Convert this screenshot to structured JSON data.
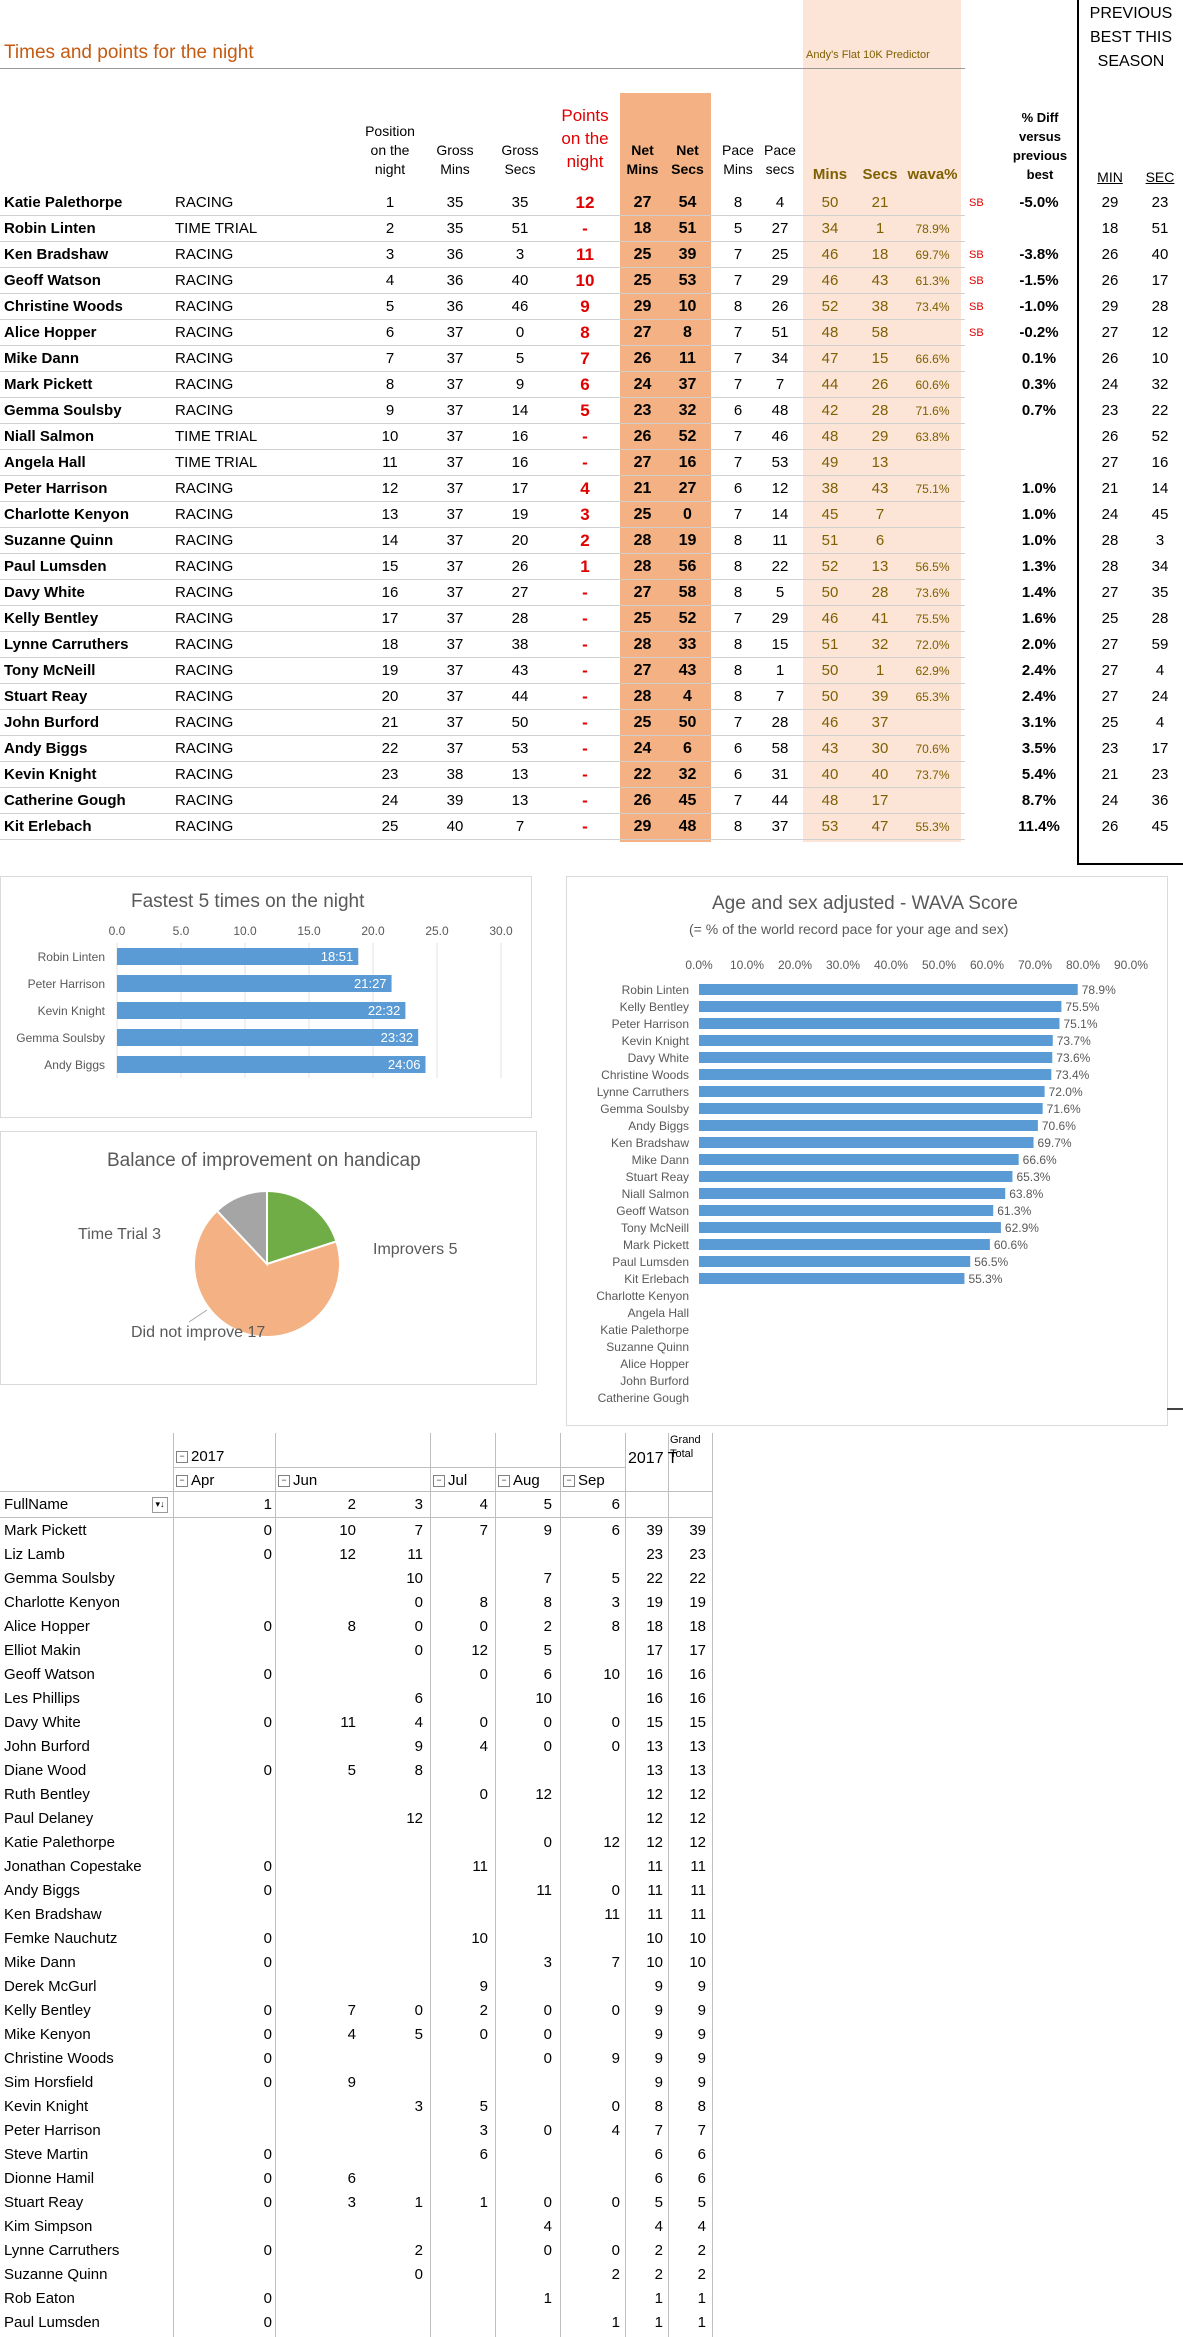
{
  "header": {
    "title": "Times and points for the night",
    "predictor": "Andy's Flat 10K Predictor",
    "prev_best": [
      "PREVIOUS",
      "BEST THIS",
      "SEASON"
    ]
  },
  "columns": {
    "position": [
      "Position",
      "on the",
      "night"
    ],
    "gross_mins": [
      "Gross",
      "Mins"
    ],
    "gross_secs": [
      "Gross",
      "Secs"
    ],
    "points": [
      "Points",
      "on the",
      "night"
    ],
    "net_mins": [
      "Net",
      "Mins"
    ],
    "net_secs": [
      "Net",
      "Secs"
    ],
    "pace_mins": [
      "Pace",
      "Mins"
    ],
    "pace_secs": [
      "Pace",
      "secs"
    ],
    "pred_mins": "Mins",
    "pred_secs": "Secs",
    "wava": "wava%",
    "diff": [
      "% Diff",
      "versus",
      "previous",
      "best"
    ],
    "prev_min": "MIN",
    "prev_sec": "SEC"
  },
  "results": [
    [
      "Katie Palethorpe",
      "RACING",
      "1",
      "35",
      "35",
      "12",
      "27",
      "54",
      "8",
      "4",
      "50",
      "21",
      "",
      "SB",
      "-5.0%",
      "29",
      "23"
    ],
    [
      "Robin Linten",
      "TIME TRIAL",
      "2",
      "35",
      "51",
      "-",
      "18",
      "51",
      "5",
      "27",
      "34",
      "1",
      "78.9%",
      "",
      "",
      "18",
      "51"
    ],
    [
      "Ken Bradshaw",
      "RACING",
      "3",
      "36",
      "3",
      "11",
      "25",
      "39",
      "7",
      "25",
      "46",
      "18",
      "69.7%",
      "SB",
      "-3.8%",
      "26",
      "40"
    ],
    [
      "Geoff Watson",
      "RACING",
      "4",
      "36",
      "40",
      "10",
      "25",
      "53",
      "7",
      "29",
      "46",
      "43",
      "61.3%",
      "SB",
      "-1.5%",
      "26",
      "17"
    ],
    [
      "Christine Woods",
      "RACING",
      "5",
      "36",
      "46",
      "9",
      "29",
      "10",
      "8",
      "26",
      "52",
      "38",
      "73.4%",
      "SB",
      "-1.0%",
      "29",
      "28"
    ],
    [
      "Alice Hopper",
      "RACING",
      "6",
      "37",
      "0",
      "8",
      "27",
      "8",
      "7",
      "51",
      "48",
      "58",
      "",
      "SB",
      "-0.2%",
      "27",
      "12"
    ],
    [
      "Mike Dann",
      "RACING",
      "7",
      "37",
      "5",
      "7",
      "26",
      "11",
      "7",
      "34",
      "47",
      "15",
      "66.6%",
      "",
      "0.1%",
      "26",
      "10"
    ],
    [
      "Mark Pickett",
      "RACING",
      "8",
      "37",
      "9",
      "6",
      "24",
      "37",
      "7",
      "7",
      "44",
      "26",
      "60.6%",
      "",
      "0.3%",
      "24",
      "32"
    ],
    [
      "Gemma Soulsby",
      "RACING",
      "9",
      "37",
      "14",
      "5",
      "23",
      "32",
      "6",
      "48",
      "42",
      "28",
      "71.6%",
      "",
      "0.7%",
      "23",
      "22"
    ],
    [
      "Niall Salmon",
      "TIME TRIAL",
      "10",
      "37",
      "16",
      "-",
      "26",
      "52",
      "7",
      "46",
      "48",
      "29",
      "63.8%",
      "",
      "",
      "26",
      "52"
    ],
    [
      "Angela Hall",
      "TIME TRIAL",
      "11",
      "37",
      "16",
      "-",
      "27",
      "16",
      "7",
      "53",
      "49",
      "13",
      "",
      "",
      "",
      "27",
      "16"
    ],
    [
      "Peter Harrison",
      "RACING",
      "12",
      "37",
      "17",
      "4",
      "21",
      "27",
      "6",
      "12",
      "38",
      "43",
      "75.1%",
      "",
      "1.0%",
      "21",
      "14"
    ],
    [
      "Charlotte Kenyon",
      "RACING",
      "13",
      "37",
      "19",
      "3",
      "25",
      "0",
      "7",
      "14",
      "45",
      "7",
      "",
      "",
      "1.0%",
      "24",
      "45"
    ],
    [
      "Suzanne Quinn",
      "RACING",
      "14",
      "37",
      "20",
      "2",
      "28",
      "19",
      "8",
      "11",
      "51",
      "6",
      "",
      "",
      "1.0%",
      "28",
      "3"
    ],
    [
      "Paul Lumsden",
      "RACING",
      "15",
      "37",
      "26",
      "1",
      "28",
      "56",
      "8",
      "22",
      "52",
      "13",
      "56.5%",
      "",
      "1.3%",
      "28",
      "34"
    ],
    [
      "Davy White",
      "RACING",
      "16",
      "37",
      "27",
      "-",
      "27",
      "58",
      "8",
      "5",
      "50",
      "28",
      "73.6%",
      "",
      "1.4%",
      "27",
      "35"
    ],
    [
      "Kelly Bentley",
      "RACING",
      "17",
      "37",
      "28",
      "-",
      "25",
      "52",
      "7",
      "29",
      "46",
      "41",
      "75.5%",
      "",
      "1.6%",
      "25",
      "28"
    ],
    [
      "Lynne Carruthers",
      "RACING",
      "18",
      "37",
      "38",
      "-",
      "28",
      "33",
      "8",
      "15",
      "51",
      "32",
      "72.0%",
      "",
      "2.0%",
      "27",
      "59"
    ],
    [
      "Tony McNeill",
      "RACING",
      "19",
      "37",
      "43",
      "-",
      "27",
      "43",
      "8",
      "1",
      "50",
      "1",
      "62.9%",
      "",
      "2.4%",
      "27",
      "4"
    ],
    [
      "Stuart Reay",
      "RACING",
      "20",
      "37",
      "44",
      "-",
      "28",
      "4",
      "8",
      "7",
      "50",
      "39",
      "65.3%",
      "",
      "2.4%",
      "27",
      "24"
    ],
    [
      "John Burford",
      "RACING",
      "21",
      "37",
      "50",
      "-",
      "25",
      "50",
      "7",
      "28",
      "46",
      "37",
      "",
      "",
      "3.1%",
      "25",
      "4"
    ],
    [
      "Andy Biggs",
      "RACING",
      "22",
      "37",
      "53",
      "-",
      "24",
      "6",
      "6",
      "58",
      "43",
      "30",
      "70.6%",
      "",
      "3.5%",
      "23",
      "17"
    ],
    [
      "Kevin Knight",
      "RACING",
      "23",
      "38",
      "13",
      "-",
      "22",
      "32",
      "6",
      "31",
      "40",
      "40",
      "73.7%",
      "",
      "5.4%",
      "21",
      "23"
    ],
    [
      "Catherine Gough",
      "RACING",
      "24",
      "39",
      "13",
      "-",
      "26",
      "45",
      "7",
      "44",
      "48",
      "17",
      "",
      "",
      "8.7%",
      "24",
      "36"
    ],
    [
      "Kit Erlebach",
      "RACING",
      "25",
      "40",
      "7",
      "-",
      "29",
      "48",
      "8",
      "37",
      "53",
      "47",
      "55.3%",
      "",
      "11.4%",
      "26",
      "45"
    ]
  ],
  "charts": {
    "fastest": {
      "chart_data": {
        "type": "bar",
        "title": "Fastest 5 times on the night",
        "categories": [
          "Robin Linten",
          "Peter Harrison",
          "Kevin Knight",
          "Gemma Soulsby",
          "Andy Biggs"
        ],
        "values": [
          18.85,
          21.45,
          22.53,
          23.53,
          24.1
        ],
        "labels": [
          "18:51",
          "21:27",
          "22:32",
          "23:32",
          "24:06"
        ],
        "xlim": [
          0,
          30
        ],
        "ticks": [
          "0.0",
          "5.0",
          "10.0",
          "15.0",
          "20.0",
          "25.0",
          "30.0"
        ],
        "color": "#5b9bd5"
      }
    },
    "balance": {
      "chart_data": {
        "type": "pie",
        "title": "Balance of improvement  on handicap",
        "slices": [
          {
            "label": "Improvers 5",
            "value": 5,
            "color": "#70ad47"
          },
          {
            "label": "Did not improve 17",
            "value": 17,
            "color": "#f4b183"
          },
          {
            "label": "Time Trial 3",
            "value": 3,
            "color": "#a5a5a5"
          }
        ]
      }
    },
    "wava": {
      "chart_data": {
        "type": "bar",
        "title": "Age and sex adjusted - WAVA Score",
        "subtitle": "(= % of the world record pace for your age and sex)",
        "categories": [
          "Robin Linten",
          "Kelly Bentley",
          "Peter Harrison",
          "Kevin Knight",
          "Davy White",
          "Christine Woods",
          "Lynne Carruthers",
          "Gemma Soulsby",
          "Andy Biggs",
          "Ken Bradshaw",
          "Mike Dann",
          "Stuart Reay",
          "Niall Salmon",
          "Geoff Watson",
          "Tony McNeill",
          "Mark Pickett",
          "Paul Lumsden",
          "Kit Erlebach",
          "Charlotte Kenyon",
          "Angela Hall",
          "Katie Palethorpe",
          "Suzanne Quinn",
          "Alice Hopper",
          "John Burford",
          "Catherine Gough"
        ],
        "values": [
          78.9,
          75.5,
          75.1,
          73.7,
          73.6,
          73.4,
          72.0,
          71.6,
          70.6,
          69.7,
          66.6,
          65.3,
          63.8,
          61.3,
          62.9,
          60.6,
          56.5,
          55.3,
          null,
          null,
          null,
          null,
          null,
          null,
          null
        ],
        "labels": [
          "78.9%",
          "75.5%",
          "75.1%",
          "73.7%",
          "73.6%",
          "73.4%",
          "72.0%",
          "71.6%",
          "70.6%",
          "69.7%",
          "66.6%",
          "65.3%",
          "63.8%",
          "61.3%",
          "62.9%",
          "60.6%",
          "56.5%",
          "55.3%",
          "",
          "",
          "",
          "",
          "",
          "",
          ""
        ],
        "xlim": [
          0,
          90
        ],
        "ticks": [
          "0.0%",
          "10.0%",
          "20.0%",
          "30.0%",
          "40.0%",
          "50.0%",
          "60.0%",
          "70.0%",
          "80.0%",
          "90.0%"
        ],
        "color": "#5b9bd5"
      }
    }
  },
  "pivot": {
    "year": "2017",
    "months": [
      "Apr",
      "Jun",
      "Jul",
      "Aug",
      "Sep"
    ],
    "header_fullname": "FullName",
    "week_headers": [
      "1",
      "2",
      "3",
      "4",
      "5",
      "6"
    ],
    "total_year": "2017 T",
    "grand_total": [
      "Grand",
      "Total"
    ],
    "rows": [
      [
        "Mark Pickett",
        "0",
        "10",
        "7",
        "7",
        "9",
        "6",
        "39",
        "39"
      ],
      [
        "Liz Lamb",
        "0",
        "12",
        "11",
        "",
        "",
        "",
        "23",
        "23"
      ],
      [
        "Gemma Soulsby",
        "",
        "",
        "10",
        "",
        "7",
        "5",
        "22",
        "22"
      ],
      [
        "Charlotte Kenyon",
        "",
        "",
        "0",
        "8",
        "8",
        "3",
        "19",
        "19"
      ],
      [
        "Alice Hopper",
        "0",
        "8",
        "0",
        "0",
        "2",
        "8",
        "18",
        "18"
      ],
      [
        "Elliot Makin",
        "",
        "",
        "0",
        "12",
        "5",
        "",
        "17",
        "17"
      ],
      [
        "Geoff Watson",
        "0",
        "",
        "",
        "0",
        "6",
        "10",
        "16",
        "16"
      ],
      [
        "Les Phillips",
        "",
        "",
        "6",
        "",
        "10",
        "",
        "16",
        "16"
      ],
      [
        "Davy White",
        "0",
        "11",
        "4",
        "0",
        "0",
        "0",
        "15",
        "15"
      ],
      [
        "John Burford",
        "",
        "",
        "9",
        "4",
        "0",
        "0",
        "13",
        "13"
      ],
      [
        "Diane Wood",
        "0",
        "5",
        "8",
        "",
        "",
        "",
        "13",
        "13"
      ],
      [
        "Ruth Bentley",
        "",
        "",
        "",
        "0",
        "12",
        "",
        "12",
        "12"
      ],
      [
        "Paul Delaney",
        "",
        "",
        "12",
        "",
        "",
        "",
        "12",
        "12"
      ],
      [
        "Katie Palethorpe",
        "",
        "",
        "",
        "",
        "0",
        "12",
        "12",
        "12"
      ],
      [
        "Jonathan Copestake",
        "0",
        "",
        "",
        "11",
        "",
        "",
        "11",
        "11"
      ],
      [
        "Andy Biggs",
        "0",
        "",
        "",
        "",
        "11",
        "0",
        "11",
        "11"
      ],
      [
        "Ken Bradshaw",
        "",
        "",
        "",
        "",
        "",
        "11",
        "11",
        "11"
      ],
      [
        "Femke Nauchutz",
        "0",
        "",
        "",
        "10",
        "",
        "",
        "10",
        "10"
      ],
      [
        "Mike Dann",
        "0",
        "",
        "",
        "",
        "3",
        "7",
        "10",
        "10"
      ],
      [
        "Derek McGurl",
        "",
        "",
        "",
        "9",
        "",
        "",
        "9",
        "9"
      ],
      [
        "Kelly Bentley",
        "0",
        "7",
        "0",
        "2",
        "0",
        "0",
        "9",
        "9"
      ],
      [
        "Mike Kenyon",
        "0",
        "4",
        "5",
        "0",
        "0",
        "",
        "9",
        "9"
      ],
      [
        "Christine Woods",
        "0",
        "",
        "",
        "",
        "0",
        "9",
        "9",
        "9"
      ],
      [
        "Sim Horsfield",
        "0",
        "9",
        "",
        "",
        "",
        "",
        "9",
        "9"
      ],
      [
        "Kevin Knight",
        "",
        "",
        "3",
        "5",
        "",
        "0",
        "8",
        "8"
      ],
      [
        "Peter Harrison",
        "",
        "",
        "",
        "3",
        "0",
        "4",
        "7",
        "7"
      ],
      [
        "Steve Martin",
        "0",
        "",
        "",
        "6",
        "",
        "",
        "6",
        "6"
      ],
      [
        "Dionne Hamil",
        "0",
        "6",
        "",
        "",
        "",
        "",
        "6",
        "6"
      ],
      [
        "Stuart Reay",
        "0",
        "3",
        "1",
        "1",
        "0",
        "0",
        "5",
        "5"
      ],
      [
        "Kim Simpson",
        "",
        "",
        "",
        "",
        "4",
        "",
        "4",
        "4"
      ],
      [
        "Lynne Carruthers",
        "0",
        "",
        "2",
        "",
        "0",
        "0",
        "2",
        "2"
      ],
      [
        "Suzanne Quinn",
        "",
        "",
        "0",
        "",
        "",
        "2",
        "2",
        "2"
      ],
      [
        "Rob Eaton",
        "0",
        "",
        "",
        "",
        "1",
        "",
        "1",
        "1"
      ],
      [
        "Paul Lumsden",
        "0",
        "",
        "",
        "",
        "",
        "1",
        "1",
        "1"
      ]
    ]
  }
}
